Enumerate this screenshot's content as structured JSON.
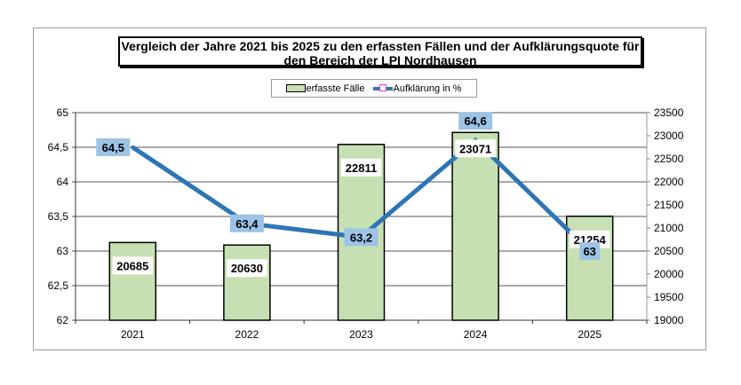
{
  "chart_data": {
    "type": "bar+line",
    "title": "Vergleich der Jahre 2021 bis 2025 zu den erfassten Fällen und der Aufklärungsquote für den Bereich der LPI Nordhausen",
    "categories": [
      "2021",
      "2022",
      "2023",
      "2024",
      "2025"
    ],
    "series": [
      {
        "name": "erfasste Fälle",
        "type": "bar",
        "axis": "right",
        "values": [
          20685,
          20630,
          22811,
          23071,
          21254
        ],
        "labels": [
          "20685",
          "20630",
          "22811",
          "23071",
          "21254"
        ],
        "color": "#c6e0b4"
      },
      {
        "name": "Aufklärung in %",
        "type": "line",
        "axis": "left",
        "values": [
          64.5,
          63.4,
          63.2,
          64.6,
          63.0
        ],
        "labels": [
          "64,5",
          "63,4",
          "63,2",
          "64,6",
          "63"
        ],
        "color": "#2e75b6"
      }
    ],
    "left_axis": {
      "ylim": [
        62,
        65
      ],
      "ticks": [
        "62",
        "62,5",
        "63",
        "63,5",
        "64",
        "64,5",
        "65"
      ]
    },
    "right_axis": {
      "ylim": [
        19000,
        23500
      ],
      "ticks": [
        "19000",
        "19500",
        "20000",
        "20500",
        "21000",
        "21500",
        "22000",
        "22500",
        "23000",
        "23500"
      ]
    },
    "grid": true,
    "legend": "top-center"
  }
}
